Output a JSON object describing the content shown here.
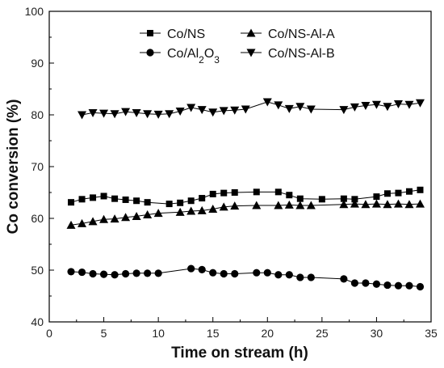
{
  "chart_data": {
    "type": "line",
    "xlabel": "Time on stream (h)",
    "ylabel": "Co conversion (%)",
    "xlim": [
      0,
      35
    ],
    "ylim": [
      40,
      100
    ],
    "xticks": [
      0,
      5,
      10,
      15,
      20,
      25,
      30,
      35
    ],
    "yticks": [
      40,
      50,
      60,
      70,
      80,
      90,
      100
    ],
    "grid": false,
    "legend_position": "top",
    "series": [
      {
        "name": "Co/NS",
        "marker": "square",
        "x": [
          2,
          3,
          4,
          5,
          6,
          7,
          8,
          9,
          11,
          12,
          13,
          14,
          15,
          16,
          17,
          19,
          21,
          22,
          23,
          25,
          27,
          28,
          30,
          31,
          32,
          33,
          34
        ],
        "y": [
          63.1,
          63.7,
          64.0,
          64.3,
          63.8,
          63.6,
          63.4,
          63.1,
          62.8,
          63.0,
          63.4,
          63.9,
          64.7,
          64.9,
          65.0,
          65.1,
          65.1,
          64.5,
          63.8,
          63.7,
          63.8,
          63.7,
          64.2,
          64.8,
          64.9,
          65.2,
          65.5
        ]
      },
      {
        "name": "Co/Al2O3",
        "marker": "circle",
        "x": [
          2,
          3,
          4,
          5,
          6,
          7,
          8,
          9,
          10,
          13,
          14,
          15,
          16,
          17,
          19,
          20,
          21,
          22,
          23,
          24,
          27,
          28,
          29,
          30,
          31,
          32,
          33,
          34
        ],
        "y": [
          49.7,
          49.6,
          49.3,
          49.2,
          49.1,
          49.3,
          49.4,
          49.4,
          49.4,
          50.3,
          50.1,
          49.5,
          49.3,
          49.3,
          49.5,
          49.5,
          49.1,
          49.1,
          48.6,
          48.6,
          48.3,
          47.5,
          47.5,
          47.3,
          47.1,
          47.0,
          47.0,
          46.8
        ]
      },
      {
        "name": "Co/NS-Al-A",
        "marker": "triangle-up",
        "x": [
          2,
          3,
          4,
          5,
          6,
          7,
          8,
          9,
          10,
          12,
          13,
          14,
          15,
          16,
          17,
          19,
          21,
          22,
          23,
          24,
          27,
          28,
          29,
          30,
          31,
          32,
          33,
          34
        ],
        "y": [
          58.7,
          59.0,
          59.4,
          59.8,
          59.9,
          60.2,
          60.4,
          60.7,
          61.0,
          61.2,
          61.4,
          61.5,
          61.8,
          62.2,
          62.4,
          62.5,
          62.5,
          62.6,
          62.5,
          62.5,
          62.7,
          62.8,
          62.7,
          62.8,
          62.7,
          62.8,
          62.7,
          62.8
        ]
      },
      {
        "name": "Co/NS-Al-B",
        "marker": "triangle-down",
        "x": [
          3,
          4,
          5,
          6,
          7,
          8,
          9,
          10,
          11,
          12,
          13,
          14,
          15,
          16,
          17,
          18,
          20,
          21,
          22,
          23,
          24,
          27,
          28,
          29,
          30,
          31,
          32,
          33,
          34
        ],
        "y": [
          80.0,
          80.4,
          80.3,
          80.2,
          80.6,
          80.4,
          80.2,
          80.1,
          80.2,
          80.7,
          81.4,
          81.0,
          80.5,
          80.8,
          80.9,
          81.1,
          82.5,
          81.9,
          81.2,
          81.6,
          81.1,
          81.0,
          81.5,
          81.8,
          82.0,
          81.6,
          82.1,
          82.0,
          82.3
        ]
      }
    ]
  }
}
